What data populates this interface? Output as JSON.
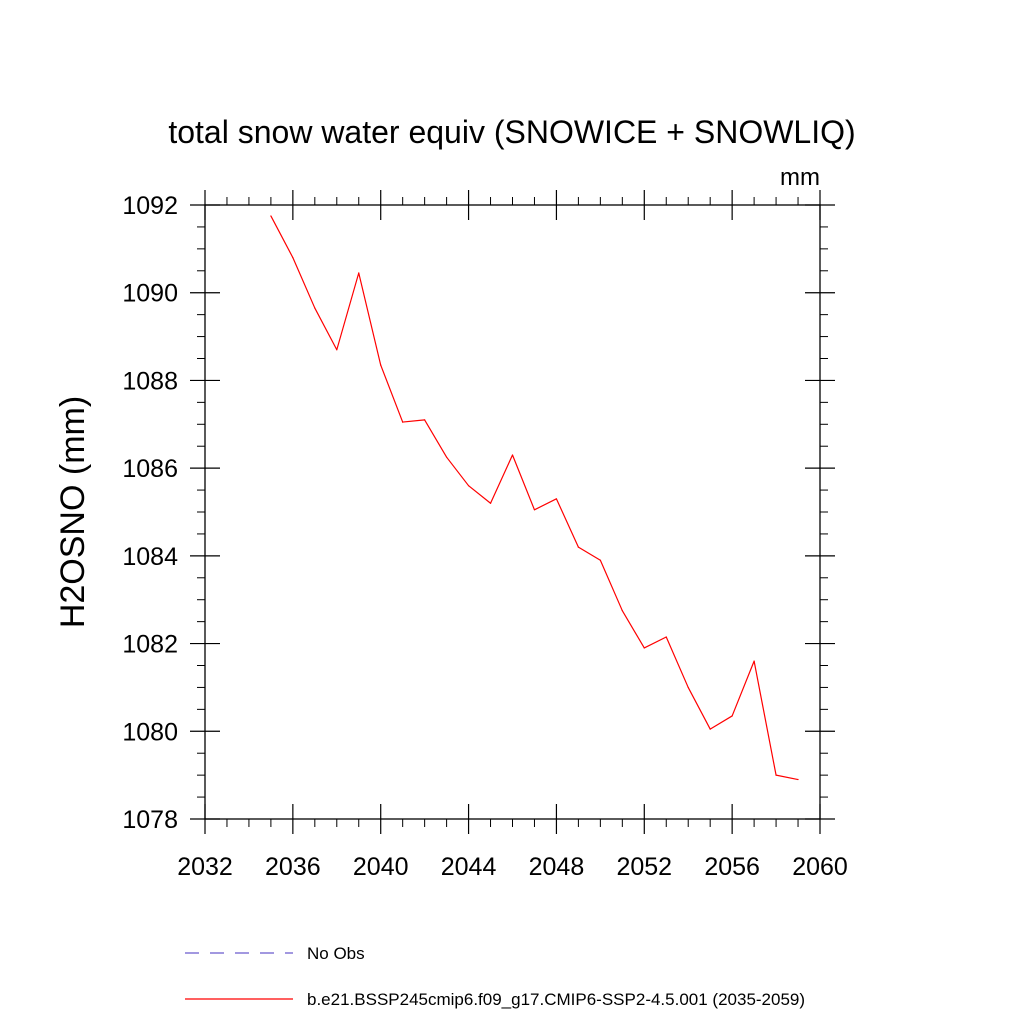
{
  "chart_data": {
    "type": "line",
    "title": "total snow water equiv (SNOWICE + SNOWLIQ)",
    "units": "mm",
    "xlabel": "",
    "ylabel": "H2OSNO  (mm)",
    "xlim": [
      2032,
      2060
    ],
    "ylim": [
      1078,
      1092
    ],
    "xticks": [
      2032,
      2036,
      2040,
      2044,
      2048,
      2052,
      2056,
      2060
    ],
    "yticks": [
      1078,
      1080,
      1082,
      1084,
      1086,
      1088,
      1090,
      1092
    ],
    "x_minor_step": 1,
    "y_minor_step": 0.5,
    "grid": false,
    "series": [
      {
        "name": "b.e21.BSSP245cmip6.f09_g17.CMIP6-SSP2-4.5.001 (2035-2059)",
        "color": "#ff0000",
        "dash": "solid",
        "x": [
          2035,
          2036,
          2037,
          2038,
          2039,
          2040,
          2041,
          2042,
          2043,
          2044,
          2045,
          2046,
          2047,
          2048,
          2049,
          2050,
          2051,
          2052,
          2053,
          2054,
          2055,
          2056,
          2057,
          2058,
          2059
        ],
        "values": [
          1091.75,
          1090.8,
          1089.65,
          1088.7,
          1090.45,
          1088.35,
          1087.05,
          1087.1,
          1086.25,
          1085.6,
          1085.2,
          1086.3,
          1085.05,
          1085.3,
          1084.2,
          1083.9,
          1082.75,
          1081.9,
          1082.15,
          1081.0,
          1080.05,
          1080.35,
          1081.6,
          1079.0,
          1078.9
        ]
      }
    ],
    "legend": [
      {
        "label": "No Obs",
        "color": "#6a5acd",
        "dash": "dashed"
      },
      {
        "label": "b.e21.BSSP245cmip6.f09_g17.CMIP6-SSP2-4.5.001 (2035-2059)",
        "color": "#ff0000",
        "dash": "solid"
      }
    ],
    "legend_position": "bottom-left"
  }
}
